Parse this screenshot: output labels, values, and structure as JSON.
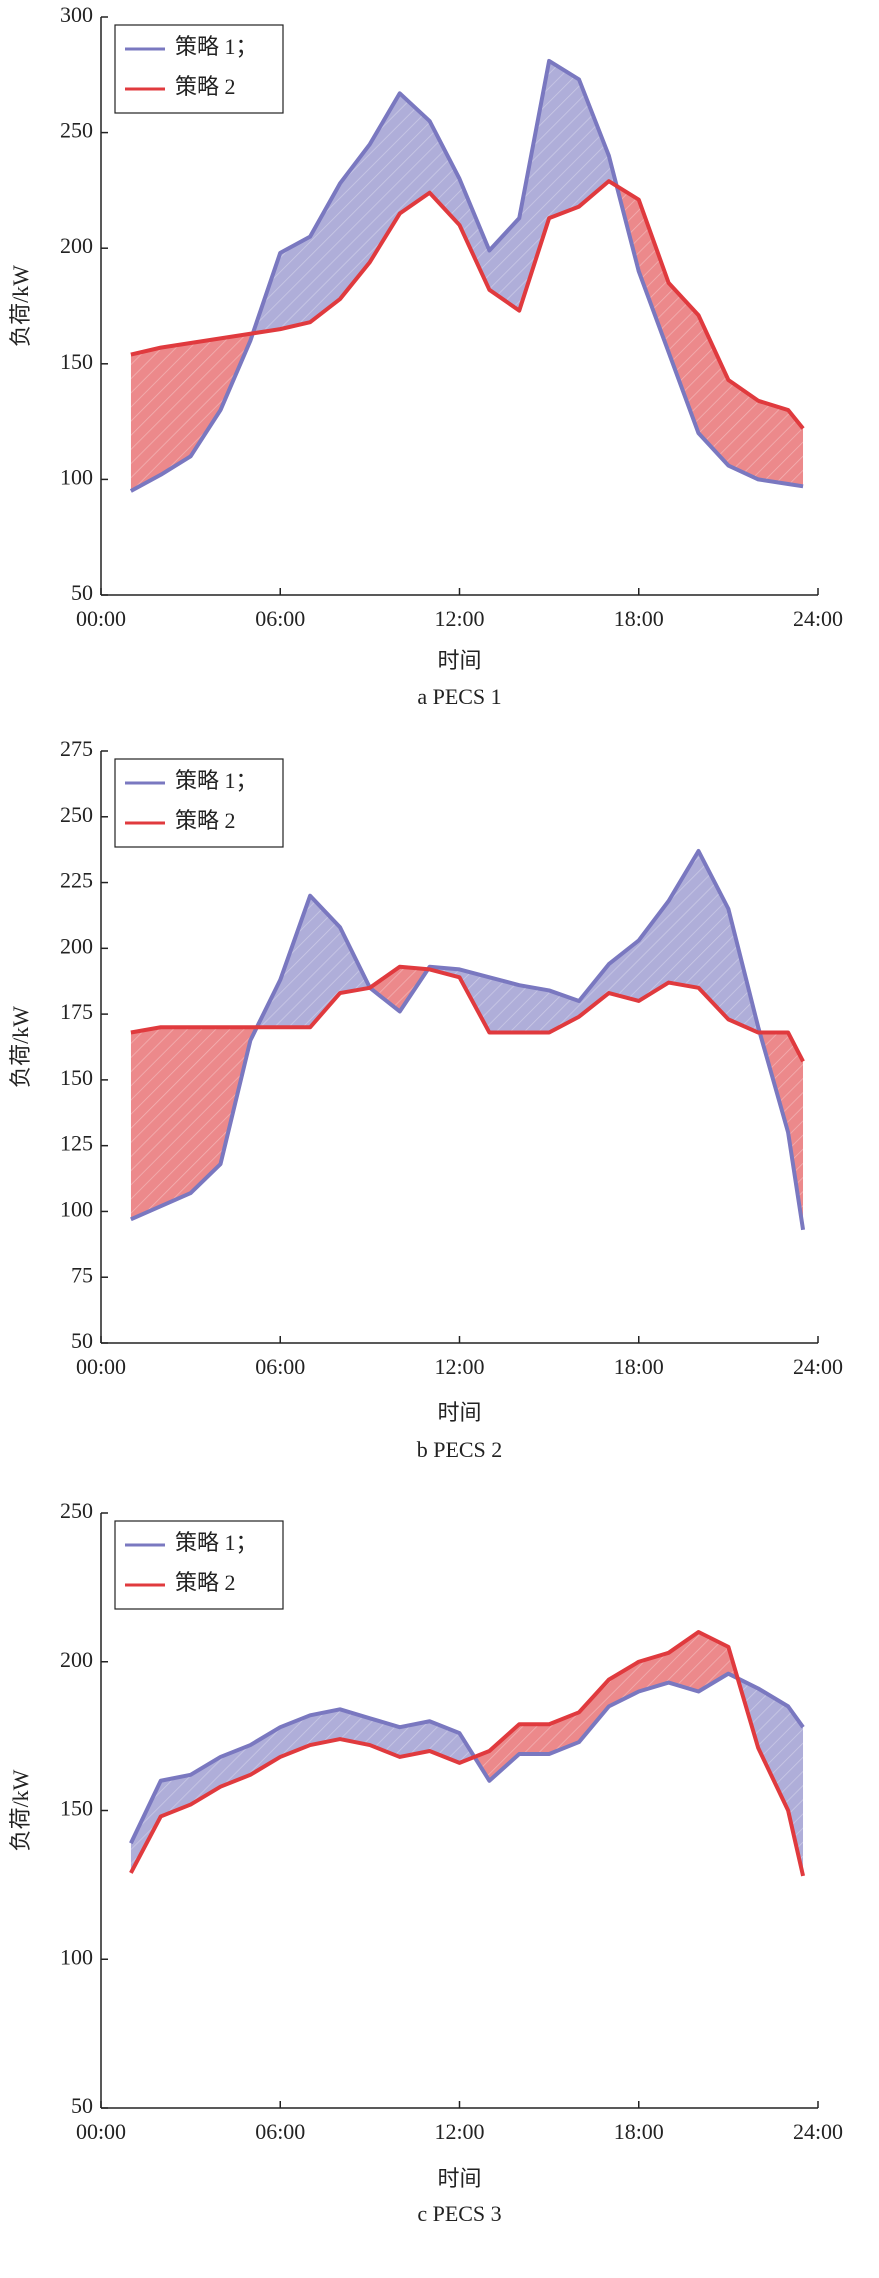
{
  "chart_data": [
    {
      "type": "line",
      "fill_between": true,
      "x_label": "时间",
      "y_label": "负荷/kW",
      "caption": "a  PECS 1",
      "x": [
        1,
        2,
        3,
        4,
        5,
        6,
        7,
        8,
        9,
        10,
        11,
        12,
        13,
        14,
        15,
        16,
        17,
        18,
        19,
        20,
        21,
        22,
        23,
        23.5
      ],
      "xlim": [
        0,
        24
      ],
      "xticks": [
        {
          "value": 0,
          "label": "00:00"
        },
        {
          "value": 6,
          "label": "06:00"
        },
        {
          "value": 12,
          "label": "12:00"
        },
        {
          "value": 18,
          "label": "18:00"
        },
        {
          "value": 24,
          "label": "24:00"
        }
      ],
      "ylim": [
        50,
        300
      ],
      "yticks": [
        50,
        100,
        150,
        200,
        250,
        300
      ],
      "series": [
        {
          "name": "策略 1；",
          "color": "#7a78c0",
          "values": [
            95,
            102,
            110,
            130,
            160,
            198,
            205,
            228,
            245,
            267,
            255,
            230,
            199,
            213,
            281,
            273,
            240,
            190,
            155,
            120,
            106,
            100,
            98,
            97
          ]
        },
        {
          "name": "策略 2",
          "color": "#e03a3e",
          "values": [
            154,
            157,
            159,
            161,
            163,
            165,
            168,
            178,
            194,
            215,
            224,
            210,
            182,
            173,
            213,
            218,
            229,
            221,
            185,
            171,
            143,
            134,
            130,
            122
          ]
        }
      ]
    },
    {
      "type": "line",
      "fill_between": true,
      "x_label": "时间",
      "y_label": "负荷/kW",
      "caption": "b  PECS 2",
      "x": [
        1,
        2,
        3,
        4,
        5,
        6,
        7,
        8,
        9,
        10,
        11,
        12,
        13,
        14,
        15,
        16,
        17,
        18,
        19,
        20,
        21,
        22,
        23,
        23.5
      ],
      "xlim": [
        0,
        24
      ],
      "xticks": [
        {
          "value": 0,
          "label": "00:00"
        },
        {
          "value": 6,
          "label": "06:00"
        },
        {
          "value": 12,
          "label": "12:00"
        },
        {
          "value": 18,
          "label": "18:00"
        },
        {
          "value": 24,
          "label": "24:00"
        }
      ],
      "ylim": [
        50,
        275
      ],
      "yticks": [
        50,
        75,
        100,
        125,
        150,
        175,
        200,
        225,
        250,
        275
      ],
      "series": [
        {
          "name": "策略 1；",
          "color": "#7a78c0",
          "values": [
            97,
            102,
            107,
            118,
            165,
            188,
            220,
            208,
            185,
            176,
            193,
            192,
            189,
            186,
            184,
            180,
            194,
            203,
            218,
            237,
            215,
            170,
            130,
            93
          ]
        },
        {
          "name": "策略 2",
          "color": "#e03a3e",
          "values": [
            168,
            170,
            170,
            170,
            170,
            170,
            170,
            183,
            185,
            193,
            192,
            189,
            168,
            168,
            168,
            174,
            183,
            180,
            187,
            185,
            173,
            168,
            168,
            157
          ]
        }
      ]
    },
    {
      "type": "line",
      "fill_between": true,
      "x_label": "时间",
      "y_label": "负荷/kW",
      "caption": "c  PECS 3",
      "x": [
        1,
        2,
        3,
        4,
        5,
        6,
        7,
        8,
        9,
        10,
        11,
        12,
        13,
        14,
        15,
        16,
        17,
        18,
        19,
        20,
        21,
        22,
        23,
        23.5
      ],
      "xlim": [
        0,
        24
      ],
      "xticks": [
        {
          "value": 0,
          "label": "00:00"
        },
        {
          "value": 6,
          "label": "06:00"
        },
        {
          "value": 12,
          "label": "12:00"
        },
        {
          "value": 18,
          "label": "18:00"
        },
        {
          "value": 24,
          "label": "24:00"
        }
      ],
      "ylim": [
        50,
        250
      ],
      "yticks": [
        50,
        100,
        150,
        200,
        250
      ],
      "series": [
        {
          "name": "策略 1；",
          "color": "#7a78c0",
          "values": [
            139,
            160,
            162,
            168,
            172,
            178,
            182,
            184,
            181,
            178,
            180,
            176,
            160,
            169,
            169,
            173,
            185,
            190,
            193,
            190,
            196,
            191,
            185,
            178
          ]
        },
        {
          "name": "策略 2",
          "color": "#e03a3e",
          "values": [
            129,
            148,
            152,
            158,
            162,
            168,
            172,
            174,
            172,
            168,
            170,
            166,
            170,
            179,
            179,
            183,
            194,
            200,
            203,
            210,
            205,
            171,
            150,
            128
          ]
        }
      ]
    }
  ]
}
